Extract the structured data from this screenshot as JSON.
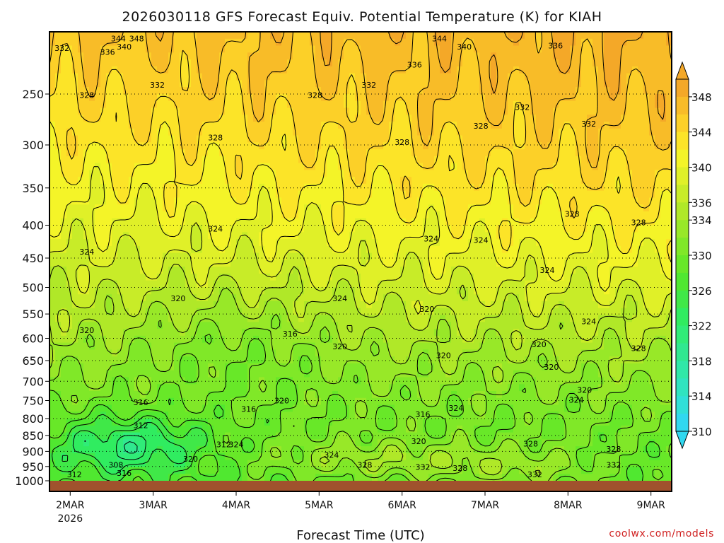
{
  "chart_data": {
    "type": "contour",
    "title": "2026030118 GFS Forecast Equiv. Potential Temperature (K) for KIAH",
    "xlabel": "Forecast Time (UTC)",
    "ylabel": "",
    "y_axis": {
      "scale": "log-pressure",
      "inverted": true,
      "range": [
        200,
        1000
      ],
      "tick_labels": [
        "250",
        "300",
        "350",
        "400",
        "450",
        "500",
        "550",
        "600",
        "650",
        "700",
        "750",
        "800",
        "850",
        "900",
        "950",
        "1000"
      ]
    },
    "x_axis": {
      "tick_labels": [
        "2MAR",
        "3MAR",
        "4MAR",
        "5MAR",
        "6MAR",
        "7MAR",
        "8MAR",
        "9MAR"
      ],
      "year_label": "2026",
      "range_days": [
        1.75,
        9.25
      ]
    },
    "colorbar": {
      "levels": [
        310,
        312,
        314,
        316,
        318,
        320,
        322,
        324,
        326,
        328,
        330,
        332,
        334,
        336,
        338,
        340,
        342,
        344,
        346,
        348,
        350
      ],
      "tick_labels": [
        "310",
        "314",
        "318",
        "322",
        "326",
        "330",
        "334",
        "336",
        "340",
        "344",
        "348"
      ],
      "colors": [
        "#30d8f0",
        "#30e0d8",
        "#30e4c0",
        "#30e8a8",
        "#30e890",
        "#30ec78",
        "#30ec60",
        "#40e848",
        "#50e830",
        "#68e828",
        "#80e828",
        "#98e828",
        "#b0e828",
        "#c8ec28",
        "#e0f028",
        "#f4f428",
        "#fce428",
        "#fcd028",
        "#f8bc28",
        "#f4a828"
      ],
      "extend": "both"
    },
    "contour_labels": [
      {
        "text": "344",
        "day": 2.58,
        "p": 205
      },
      {
        "text": "348",
        "day": 2.8,
        "p": 205
      },
      {
        "text": "344",
        "day": 6.45,
        "p": 205
      },
      {
        "text": "332",
        "day": 1.9,
        "p": 212
      },
      {
        "text": "336",
        "day": 2.45,
        "p": 215
      },
      {
        "text": "340",
        "day": 2.65,
        "p": 211
      },
      {
        "text": "340",
        "day": 6.75,
        "p": 211
      },
      {
        "text": "336",
        "day": 7.85,
        "p": 210
      },
      {
        "text": "336",
        "day": 6.15,
        "p": 225
      },
      {
        "text": "332",
        "day": 3.05,
        "p": 242
      },
      {
        "text": "332",
        "day": 5.6,
        "p": 242
      },
      {
        "text": "328",
        "day": 2.2,
        "p": 251
      },
      {
        "text": "328",
        "day": 4.95,
        "p": 251
      },
      {
        "text": "332",
        "day": 7.45,
        "p": 262
      },
      {
        "text": "332",
        "day": 8.25,
        "p": 278
      },
      {
        "text": "328",
        "day": 6.95,
        "p": 280
      },
      {
        "text": "328",
        "day": 3.75,
        "p": 292
      },
      {
        "text": "328",
        "day": 6.0,
        "p": 297
      },
      {
        "text": "328",
        "day": 8.05,
        "p": 384
      },
      {
        "text": "328",
        "day": 8.85,
        "p": 396
      },
      {
        "text": "324",
        "day": 3.75,
        "p": 405
      },
      {
        "text": "324",
        "day": 6.35,
        "p": 420
      },
      {
        "text": "324",
        "day": 6.95,
        "p": 422
      },
      {
        "text": "324",
        "day": 2.2,
        "p": 440
      },
      {
        "text": "324",
        "day": 7.75,
        "p": 470
      },
      {
        "text": "320",
        "day": 3.3,
        "p": 520
      },
      {
        "text": "324",
        "day": 5.25,
        "p": 520
      },
      {
        "text": "320",
        "day": 6.3,
        "p": 540
      },
      {
        "text": "324",
        "day": 8.25,
        "p": 565
      },
      {
        "text": "320",
        "day": 2.2,
        "p": 583
      },
      {
        "text": "316",
        "day": 4.65,
        "p": 590
      },
      {
        "text": "320",
        "day": 5.25,
        "p": 618
      },
      {
        "text": "320",
        "day": 7.65,
        "p": 613
      },
      {
        "text": "328",
        "day": 8.85,
        "p": 622
      },
      {
        "text": "320",
        "day": 6.5,
        "p": 638
      },
      {
        "text": "320",
        "day": 7.8,
        "p": 665
      },
      {
        "text": "320",
        "day": 8.2,
        "p": 722
      },
      {
        "text": "316",
        "day": 2.85,
        "p": 755
      },
      {
        "text": "320",
        "day": 4.55,
        "p": 750
      },
      {
        "text": "324",
        "day": 8.1,
        "p": 748
      },
      {
        "text": "316",
        "day": 4.15,
        "p": 773
      },
      {
        "text": "316",
        "day": 6.25,
        "p": 788
      },
      {
        "text": "324",
        "day": 6.65,
        "p": 770
      },
      {
        "text": "312",
        "day": 2.85,
        "p": 820
      },
      {
        "text": "312",
        "day": 3.85,
        "p": 878
      },
      {
        "text": "324",
        "day": 4.0,
        "p": 878
      },
      {
        "text": "320",
        "day": 6.2,
        "p": 868
      },
      {
        "text": "328",
        "day": 7.55,
        "p": 875
      },
      {
        "text": "328",
        "day": 8.55,
        "p": 892
      },
      {
        "text": "324",
        "day": 5.15,
        "p": 912
      },
      {
        "text": "320",
        "day": 3.45,
        "p": 925
      },
      {
        "text": "308",
        "day": 2.55,
        "p": 945
      },
      {
        "text": "328",
        "day": 5.55,
        "p": 945
      },
      {
        "text": "332",
        "day": 6.25,
        "p": 952
      },
      {
        "text": "328",
        "day": 6.7,
        "p": 955
      },
      {
        "text": "332",
        "day": 8.55,
        "p": 945
      },
      {
        "text": "312",
        "day": 2.05,
        "p": 978
      },
      {
        "text": "316",
        "day": 2.65,
        "p": 973
      },
      {
        "text": "332",
        "day": 7.6,
        "p": 978
      }
    ],
    "grid": true,
    "legend": "colorbar-right"
  },
  "credit": "coolwx.com/models"
}
